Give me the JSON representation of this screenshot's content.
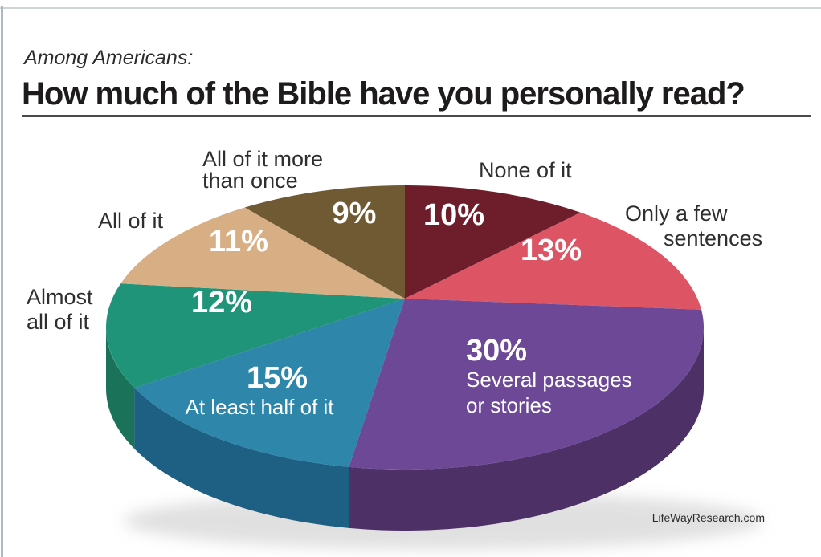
{
  "header": {
    "kicker": "Among Americans:",
    "title": "How much of the Bible have you personally read?"
  },
  "source": "LifeWayResearch.com",
  "colors": {
    "background": "#ffffff",
    "kicker_text": "#2b2b2b",
    "title_text": "#1d1b1c",
    "title_underline": "#4a4a4a",
    "callout_text": "#2e2e2e",
    "percent_text": "#ffffff",
    "top_border": "#cfd4d8",
    "left_border": "#adbac5"
  },
  "chart_data": {
    "type": "pie",
    "style": "3d",
    "direction": "clockwise",
    "start_angle_deg": 0,
    "title": "How much of the Bible have you personally read?",
    "subtitle": "Among Americans:",
    "source": "LifeWayResearch.com",
    "total": 100,
    "slices": [
      {
        "label": "None of it",
        "value": 10,
        "percent_label": "10%",
        "color": "#6e1e2a",
        "side_color": "#4f1420"
      },
      {
        "label": "Only a few sentences",
        "value": 13,
        "percent_label": "13%",
        "color": "#dd5565",
        "side_color": "#a83b46"
      },
      {
        "label": "Several passages or stories",
        "value": 30,
        "percent_label": "30%",
        "color": "#6c4897",
        "side_color": "#4d3066"
      },
      {
        "label": "At least half of it",
        "value": 15,
        "percent_label": "15%",
        "color": "#2e86ab",
        "side_color": "#1e6084"
      },
      {
        "label": "Almost all of it",
        "value": 12,
        "percent_label": "12%",
        "color": "#209478",
        "side_color": "#1a7259"
      },
      {
        "label": "All of it",
        "value": 11,
        "percent_label": "11%",
        "color": "#d8ae85",
        "side_color": "#b08a5f"
      },
      {
        "label": "All of it more than once",
        "value": 9,
        "percent_label": "9%",
        "color": "#6f5a33",
        "side_color": "#4e3f22"
      }
    ],
    "legend_position": "labels-around-pie",
    "grid": false
  },
  "labels": {
    "inside": {
      "several_line1": "Several passages",
      "several_line2": "or stories",
      "half": "At least half of it"
    },
    "callouts": {
      "none": "None of it",
      "few_line1": "Only a few",
      "few_line2": "sentences",
      "more_line1": "All of it more",
      "more_line2": "than once",
      "all": "All of it",
      "almost_line1": "Almost",
      "almost_line2": "all of it"
    }
  }
}
